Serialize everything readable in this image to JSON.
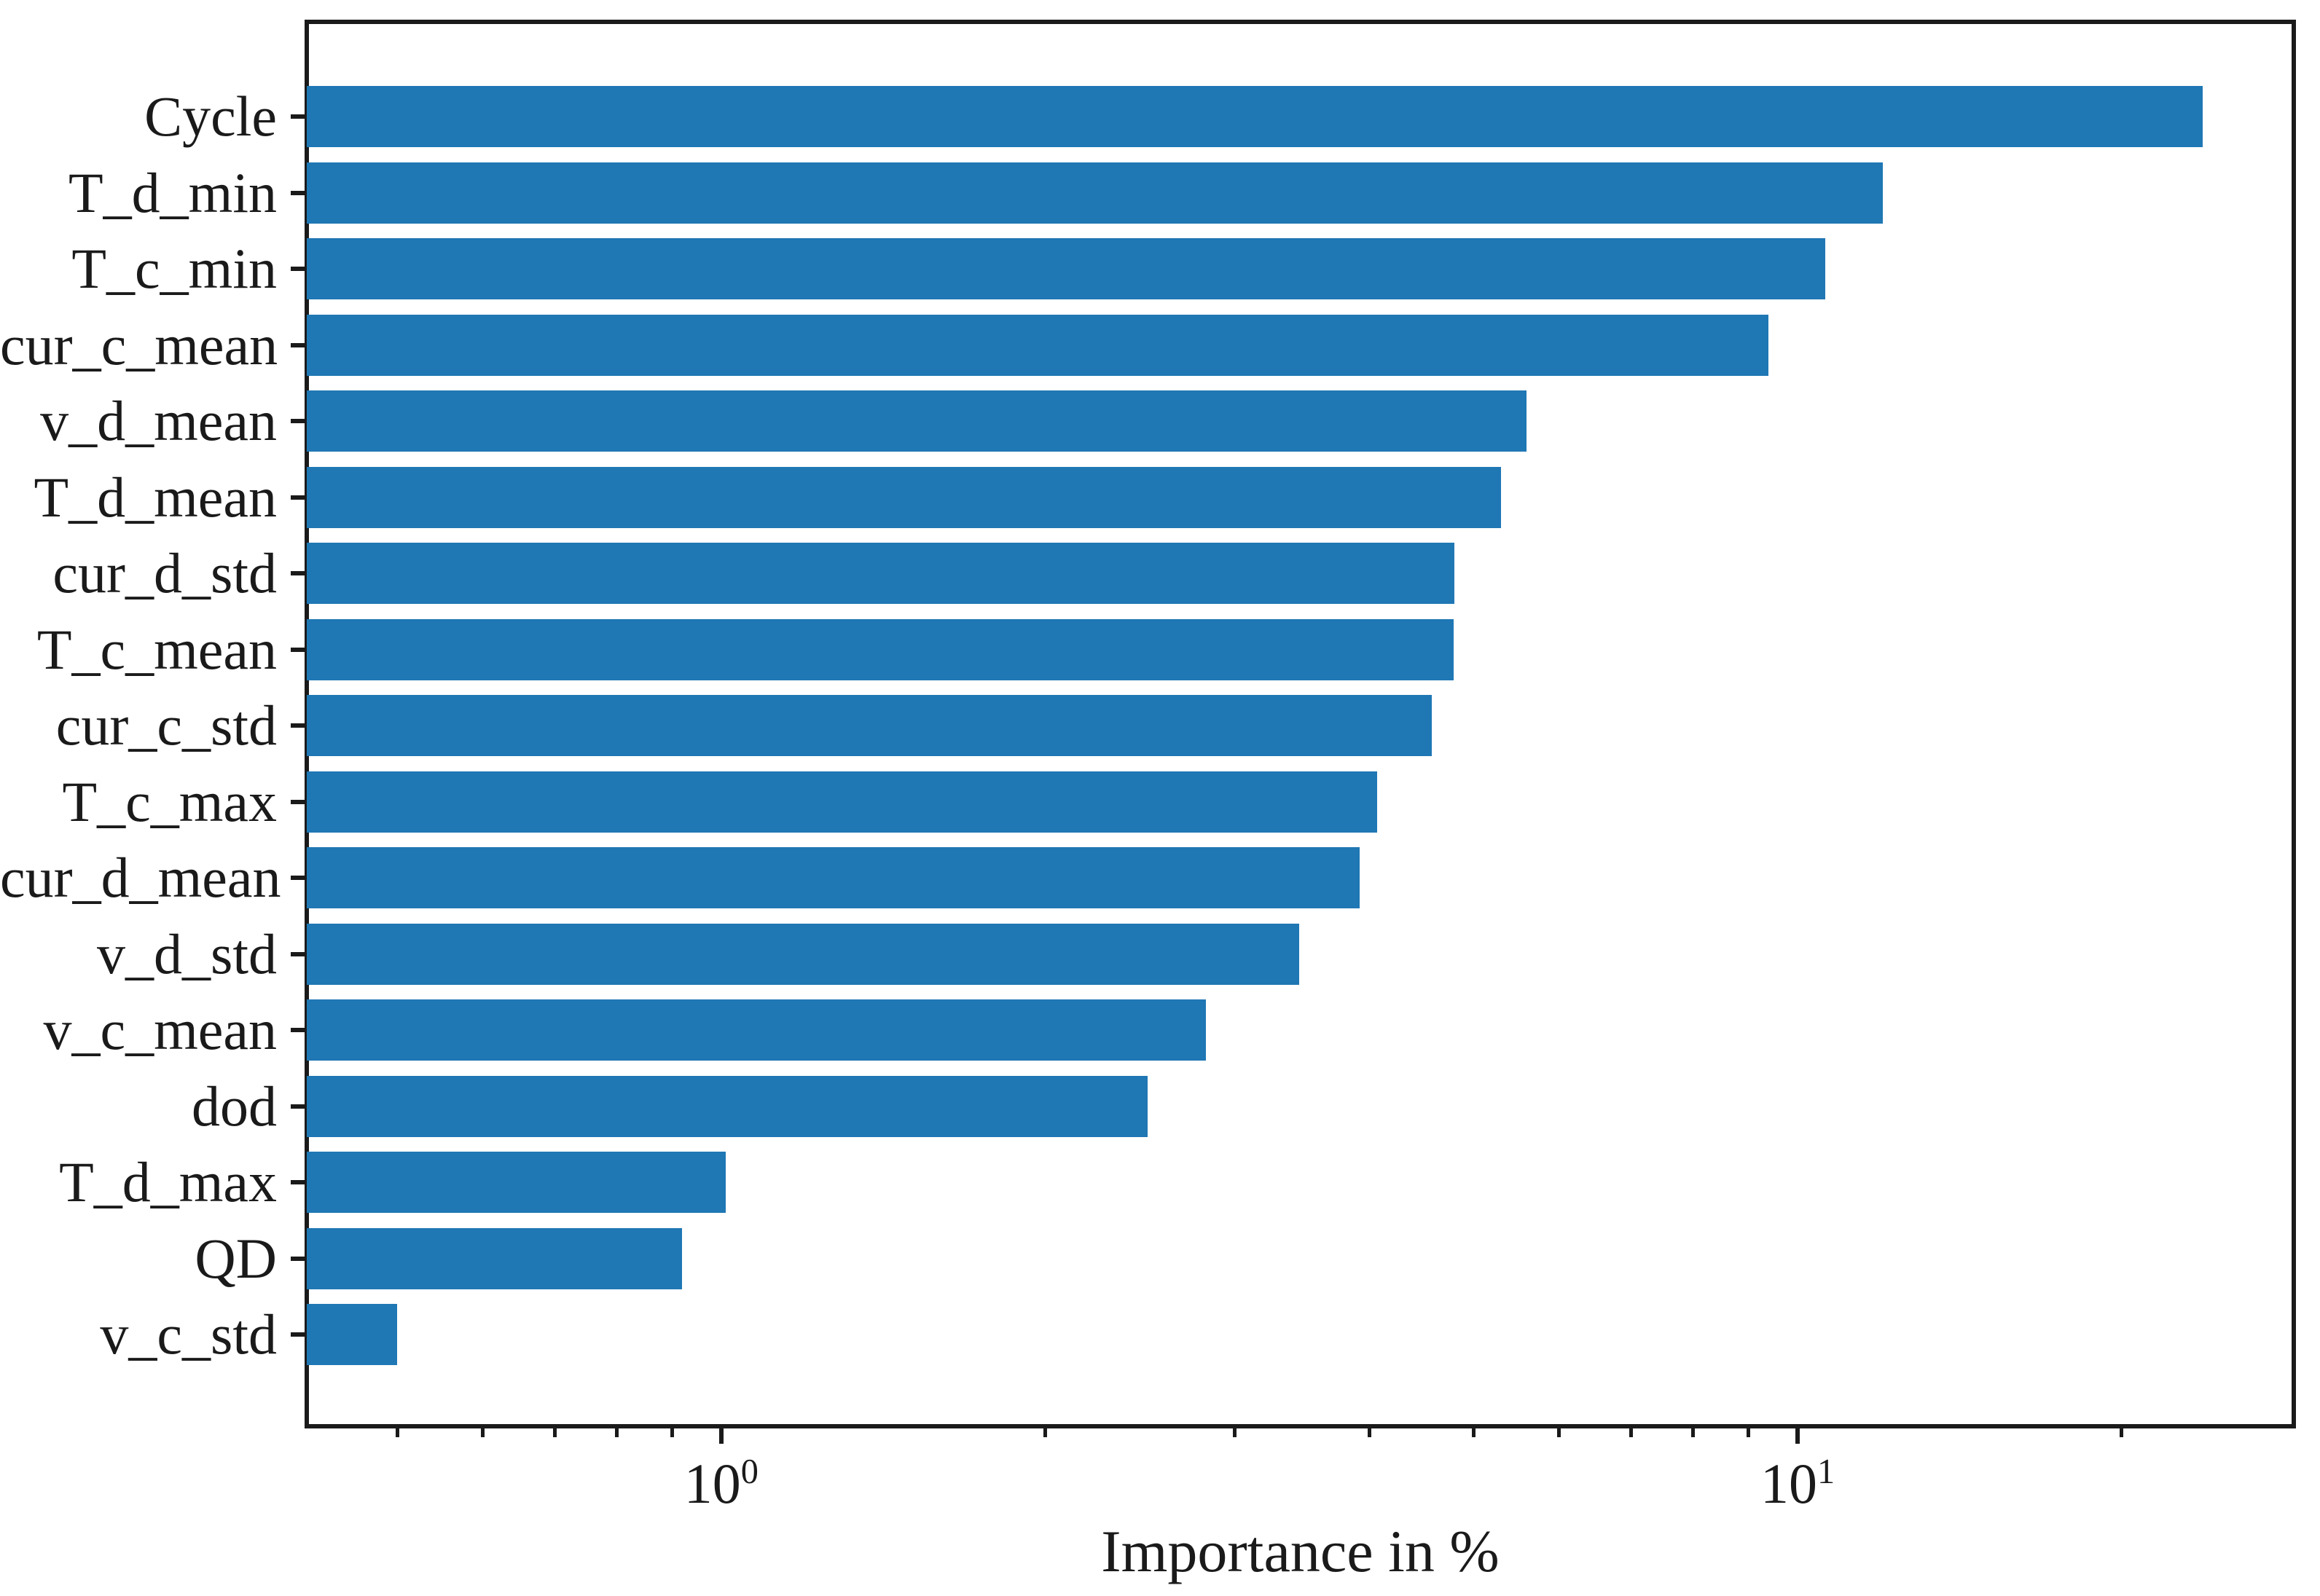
{
  "figure": {
    "background": "#ffffff"
  },
  "chart_data": {
    "type": "bar",
    "orientation": "horizontal",
    "title": "",
    "xlabel": "Importance in %",
    "ylabel": "",
    "x_scale": "log",
    "xlim": [
      0.412,
      28.9
    ],
    "grid": false,
    "legend": null,
    "bar_color": "#1f77b4",
    "axis_color": "#1a1a1a",
    "categories": [
      "Cycle",
      "T_d_min",
      "T_c_min",
      "cur_c_mean",
      "v_d_mean",
      "T_d_mean",
      "cur_d_std",
      "T_c_mean",
      "cur_c_std",
      "T_c_max",
      "cur_d_mean",
      "v_d_std",
      "v_c_mean",
      "dod",
      "T_d_max",
      "QD",
      "v_c_std"
    ],
    "values": [
      23.8,
      12.0,
      10.6,
      9.4,
      5.6,
      5.3,
      4.8,
      4.79,
      4.57,
      4.07,
      3.92,
      3.44,
      2.82,
      2.49,
      1.01,
      0.92,
      0.5
    ],
    "value_unit": "%",
    "x_major_ticks": [
      {
        "value": 1,
        "base": "10",
        "exponent": "0"
      },
      {
        "value": 10,
        "base": "10",
        "exponent": "1"
      }
    ],
    "x_minor_ticks": [
      0.5,
      0.6,
      0.7,
      0.8,
      0.9,
      2,
      3,
      4,
      5,
      6,
      7,
      8,
      9,
      20
    ]
  }
}
